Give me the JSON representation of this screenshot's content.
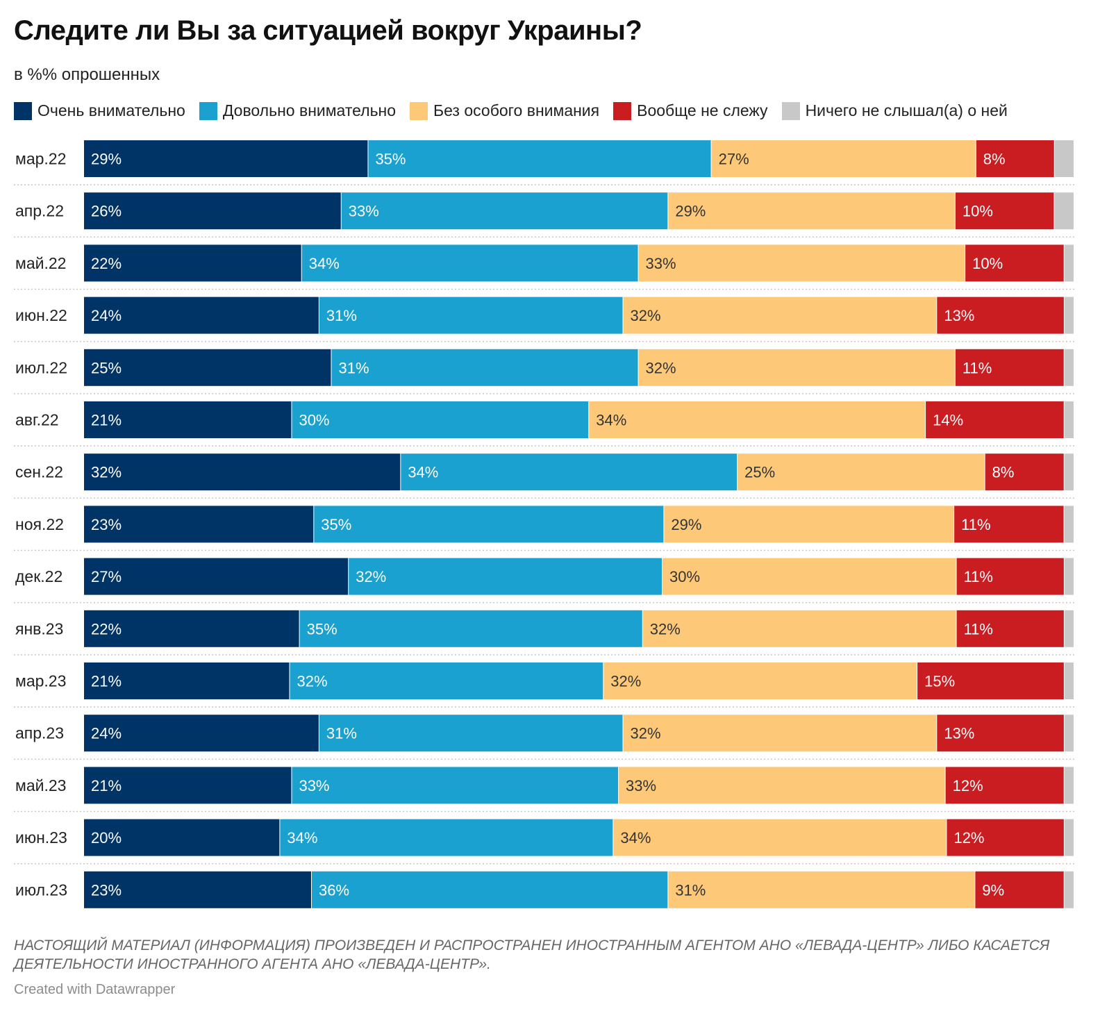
{
  "title": "Следите ли Вы за ситуацией вокруг Украины?",
  "subtitle": "в %% опрошенных",
  "footnote": "НАСТОЯЩИЙ МАТЕРИАЛ (ИНФОРМАЦИЯ) ПРОИЗВЕДЕН И РАСПРОСТРАНЕН ИНОСТРАННЫМ АГЕНТОМ АНО «ЛЕВАДА-ЦЕНТР» ЛИБО КАСАЕТСЯ ДЕЯТЕЛЬНОСТИ ИНОСТРАННОГО АГЕНТА АНО «ЛЕВАДА-ЦЕНТР».",
  "credit": "Created with Datawrapper",
  "legend": [
    {
      "label": "Очень внимательно",
      "color": "#003366"
    },
    {
      "label": "Довольно внимательно",
      "color": "#1aa1cf"
    },
    {
      "label": "Без особого внимания",
      "color": "#fdc979"
    },
    {
      "label": "Вообще не слежу",
      "color": "#c91d22"
    },
    {
      "label": "Ничего не слышал(а) о ней",
      "color": "#c8c8c8"
    }
  ],
  "chart_data": {
    "type": "bar",
    "orientation": "horizontal",
    "stacked": true,
    "unit": "%",
    "categories": [
      "мар.22",
      "апр.22",
      "май.22",
      "июн.22",
      "июл.22",
      "авг.22",
      "сен.22",
      "ноя.22",
      "дек.22",
      "янв.23",
      "мар.23",
      "апр.23",
      "май.23",
      "июн.23",
      "июл.23"
    ],
    "series": [
      {
        "name": "Очень внимательно",
        "color": "#003366",
        "label_color": "#ffffff",
        "values": [
          29,
          26,
          22,
          24,
          25,
          21,
          32,
          23,
          27,
          22,
          21,
          24,
          21,
          20,
          23
        ]
      },
      {
        "name": "Довольно внимательно",
        "color": "#1aa1cf",
        "label_color": "#ffffff",
        "values": [
          35,
          33,
          34,
          31,
          31,
          30,
          34,
          35,
          32,
          35,
          32,
          31,
          33,
          34,
          36
        ]
      },
      {
        "name": "Без особого внимания",
        "color": "#fdc979",
        "label_color": "#333333",
        "values": [
          27,
          29,
          33,
          32,
          32,
          34,
          25,
          29,
          30,
          32,
          32,
          32,
          33,
          34,
          31
        ]
      },
      {
        "name": "Вообще не слежу",
        "color": "#c91d22",
        "label_color": "#ffffff",
        "values": [
          8,
          10,
          10,
          13,
          11,
          14,
          8,
          11,
          11,
          11,
          15,
          13,
          12,
          12,
          9
        ]
      },
      {
        "name": "Ничего не слышал(а) о ней",
        "color": "#c8c8c8",
        "label_color": "#333333",
        "values": [
          2,
          2,
          1,
          1,
          1,
          1,
          1,
          1,
          1,
          1,
          1,
          1,
          1,
          1,
          1
        ]
      }
    ],
    "hidden_labels": [
      [
        false,
        false,
        false,
        false,
        true
      ],
      [
        false,
        false,
        false,
        false,
        true
      ],
      [
        false,
        false,
        false,
        false,
        true
      ],
      [
        false,
        false,
        false,
        false,
        true
      ],
      [
        false,
        false,
        false,
        false,
        true
      ],
      [
        false,
        false,
        false,
        false,
        true
      ],
      [
        false,
        false,
        false,
        false,
        true
      ],
      [
        false,
        false,
        false,
        false,
        true
      ],
      [
        false,
        false,
        false,
        false,
        true
      ],
      [
        false,
        false,
        false,
        false,
        true
      ],
      [
        false,
        false,
        false,
        false,
        true
      ],
      [
        false,
        false,
        false,
        false,
        true
      ],
      [
        false,
        false,
        false,
        false,
        true
      ],
      [
        false,
        false,
        false,
        false,
        true
      ],
      [
        false,
        false,
        false,
        false,
        true
      ]
    ]
  }
}
